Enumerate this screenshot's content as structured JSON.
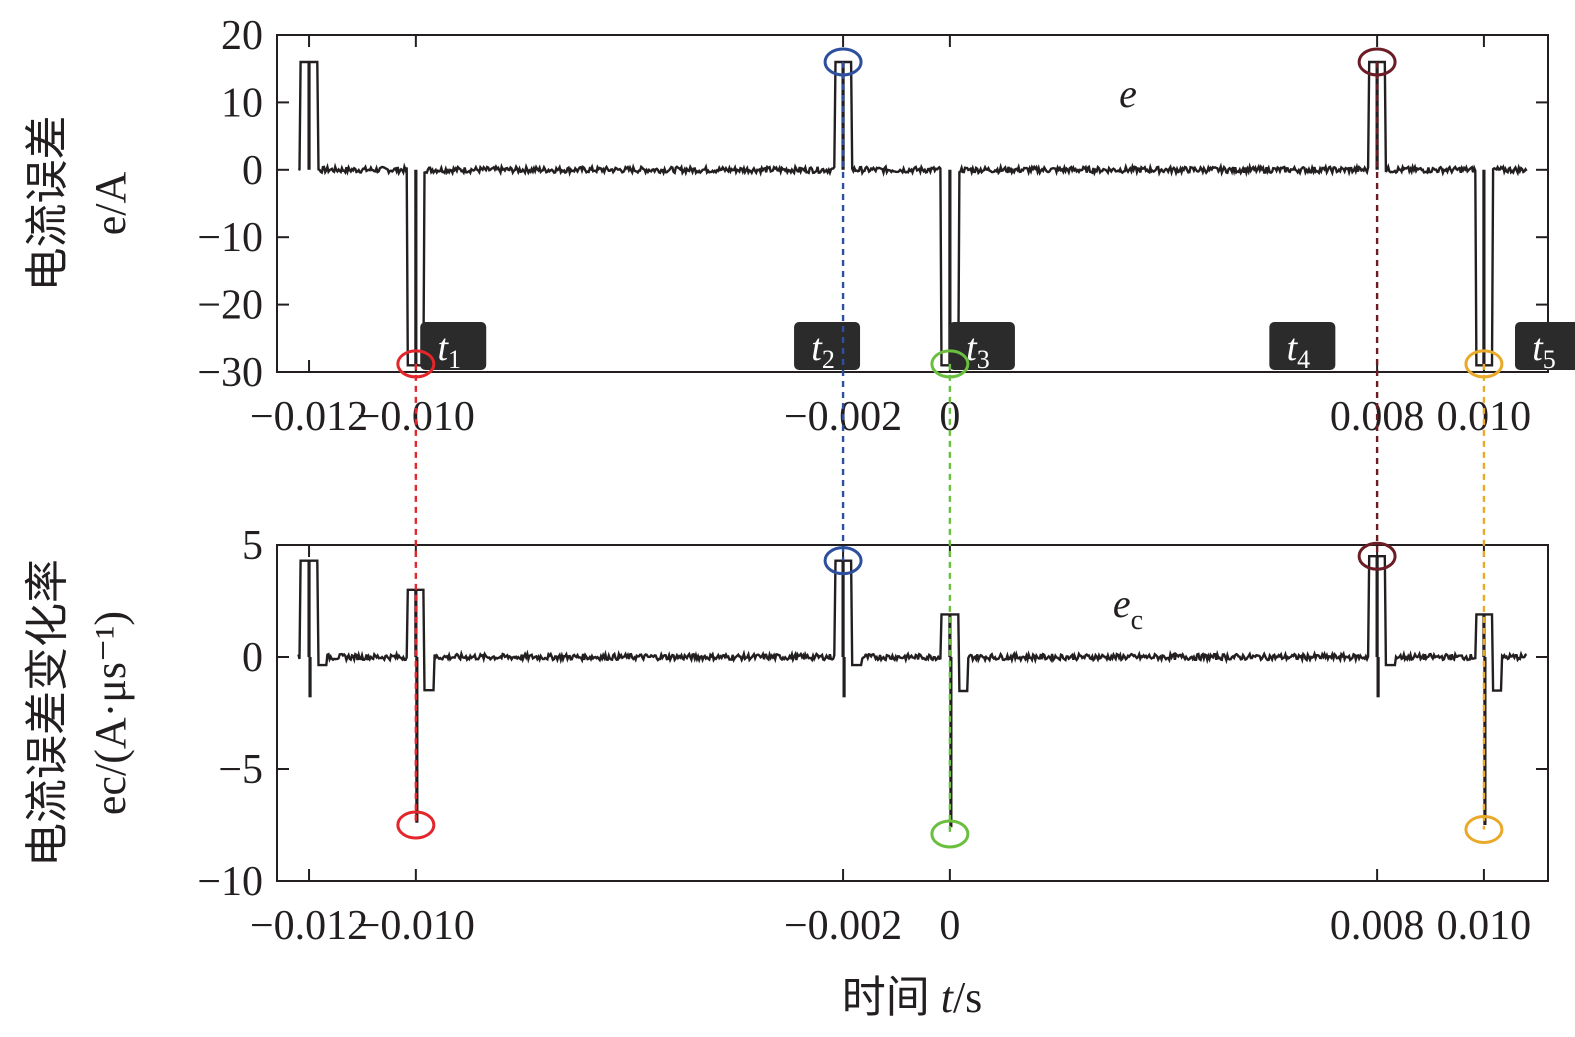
{
  "chart_data": [
    {
      "type": "line",
      "ylabel_lines": [
        "电流误差",
        "e/A"
      ],
      "series_label": "e",
      "xlim": [
        -0.0126,
        0.0112
      ],
      "ylim": [
        -30,
        20
      ],
      "xticks": [
        -0.012,
        -0.01,
        -0.002,
        0,
        0.008,
        0.01
      ],
      "xtick_labels": [
        "−0.012",
        "−0.010",
        "−0.002",
        "0",
        "0.008",
        "0.010"
      ],
      "yticks": [
        20,
        10,
        0,
        -10,
        -20,
        -30
      ],
      "ytick_labels": [
        "20",
        "10",
        "0",
        "−10",
        "−20",
        "−30"
      ],
      "spikes": [
        {
          "x": -0.012,
          "peak": 16
        },
        {
          "x": -0.01,
          "peak": -29
        },
        {
          "x": -0.002,
          "peak": 16
        },
        {
          "x": 0.0,
          "peak": -29
        },
        {
          "x": 0.008,
          "peak": 16
        },
        {
          "x": 0.01,
          "peak": -29
        }
      ],
      "circles": [
        {
          "x": -0.01,
          "y": -28.8,
          "color": "#e3262b"
        },
        {
          "x": -0.002,
          "y": 16.0,
          "color": "#2c4f9e"
        },
        {
          "x": 0.0,
          "y": -28.8,
          "color": "#6abf3f"
        },
        {
          "x": 0.008,
          "y": 16.0,
          "color": "#6b1c24"
        },
        {
          "x": 0.01,
          "y": -28.8,
          "color": "#e9a92a"
        }
      ],
      "markers": [
        {
          "label": "t",
          "sub": "1",
          "x": -0.0093
        },
        {
          "label": "t",
          "sub": "2",
          "x": -0.0023
        },
        {
          "label": "t",
          "sub": "3",
          "x": 0.0006
        },
        {
          "label": "t",
          "sub": "4",
          "x": 0.0066
        },
        {
          "label": "t",
          "sub": "5",
          "x": 0.0112
        }
      ]
    },
    {
      "type": "line",
      "ylabel_lines": [
        "电流误差变化率",
        "ec/(A·μs⁻¹)"
      ],
      "series_label": "ec",
      "xlim": [
        -0.0126,
        0.0112
      ],
      "ylim": [
        -10,
        5
      ],
      "xticks": [
        -0.012,
        -0.01,
        -0.002,
        0,
        0.008,
        0.01
      ],
      "xtick_labels": [
        "−0.012",
        "−0.010",
        "−0.002",
        "0",
        "0.008",
        "0.010"
      ],
      "yticks": [
        5,
        0,
        -5,
        -10
      ],
      "ytick_labels": [
        "5",
        "0",
        "−5",
        "−10"
      ],
      "spikes": [
        {
          "x": -0.012,
          "peak": 4.3,
          "trough": -1.8
        },
        {
          "x": -0.01,
          "peak": 3.0,
          "trough": -7.4
        },
        {
          "x": -0.002,
          "peak": 4.3,
          "trough": -1.8
        },
        {
          "x": 0.0,
          "peak": 1.9,
          "trough": -7.6
        },
        {
          "x": 0.008,
          "peak": 4.5,
          "trough": -1.8
        },
        {
          "x": 0.01,
          "peak": 1.9,
          "trough": -7.5
        }
      ],
      "circles": [
        {
          "x": -0.01,
          "y": -7.5,
          "color": "#e3262b"
        },
        {
          "x": -0.002,
          "y": 4.3,
          "color": "#2c4f9e"
        },
        {
          "x": 0.0,
          "y": -7.9,
          "color": "#6abf3f"
        },
        {
          "x": 0.008,
          "y": 4.5,
          "color": "#6b1c24"
        },
        {
          "x": 0.01,
          "y": -7.7,
          "color": "#e9a92a"
        }
      ]
    }
  ],
  "xlabel": "时间 t/s",
  "dashed_lines": [
    {
      "x": -0.01,
      "color": "#e3262b"
    },
    {
      "x": -0.002,
      "color": "#2c4f9e"
    },
    {
      "x": 0.0,
      "color": "#6abf3f"
    },
    {
      "x": 0.008,
      "color": "#6b1c24"
    },
    {
      "x": 0.01,
      "color": "#e9a92a"
    }
  ],
  "colors": {
    "trace": "#231f20",
    "axis": "#231f20",
    "marker_bg": "#2b2b2b"
  }
}
